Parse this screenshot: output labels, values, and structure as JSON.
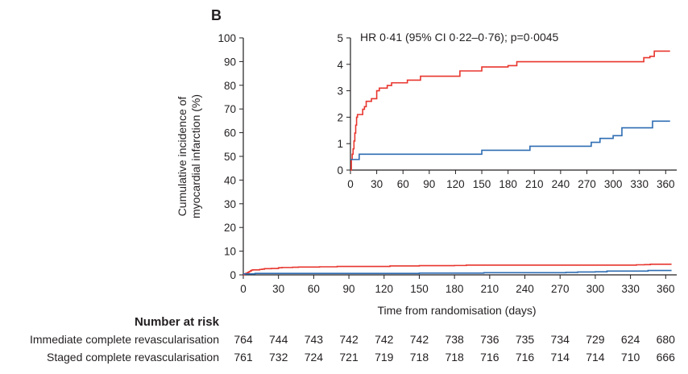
{
  "panel_label": "B",
  "chart_data": [
    {
      "type": "line",
      "role": "main",
      "ylabel_line1": "Cumulative incidence of",
      "ylabel_line2": "myocardial infarction (%)",
      "xlabel": "Time from randomisation (days)",
      "xlim": [
        0,
        365
      ],
      "ylim": [
        0,
        100
      ],
      "x_ticks": [
        0,
        30,
        60,
        90,
        120,
        150,
        180,
        210,
        240,
        270,
        300,
        330,
        360
      ],
      "y_ticks": [
        0,
        10,
        20,
        30,
        40,
        50,
        60,
        70,
        80,
        90,
        100
      ],
      "series": [
        {
          "color": "#e8362e",
          "x": [
            0,
            1,
            2,
            3,
            4,
            5,
            6,
            7,
            8,
            10,
            14,
            16,
            18,
            20,
            22,
            24,
            30,
            33,
            38,
            42,
            47,
            65,
            80,
            125,
            150,
            180,
            190,
            330,
            335,
            342,
            347,
            365
          ],
          "y": [
            0,
            0.4,
            0.6,
            0.8,
            1.1,
            1.4,
            1.7,
            2.0,
            2.1,
            2.1,
            2.3,
            2.4,
            2.6,
            2.6,
            2.6,
            2.7,
            3.0,
            3.1,
            3.1,
            3.2,
            3.3,
            3.4,
            3.55,
            3.75,
            3.9,
            3.95,
            4.1,
            4.1,
            4.25,
            4.3,
            4.5,
            4.5
          ]
        },
        {
          "color": "#2e6db3",
          "x": [
            0,
            5,
            10,
            150,
            205,
            270,
            275,
            285,
            300,
            310,
            345,
            365
          ],
          "y": [
            0.4,
            0.4,
            0.6,
            0.75,
            0.9,
            0.9,
            1.05,
            1.2,
            1.3,
            1.6,
            1.85,
            1.85
          ]
        }
      ]
    },
    {
      "type": "line",
      "role": "inset",
      "annotation": "HR 0·41 (95% CI 0·22–0·76); p=0·0045",
      "xlim": [
        0,
        365
      ],
      "ylim": [
        0,
        5
      ],
      "x_ticks": [
        0,
        30,
        60,
        90,
        120,
        150,
        180,
        210,
        240,
        270,
        300,
        330,
        360
      ],
      "y_ticks": [
        0,
        1,
        2,
        3,
        4,
        5
      ],
      "series_from": "main"
    }
  ],
  "risk_table": {
    "title": "Number at risk",
    "rows": [
      {
        "label": "Immediate complete revascularisation",
        "values": [
          "764",
          "744",
          "743",
          "742",
          "742",
          "742",
          "738",
          "736",
          "735",
          "734",
          "729",
          "624",
          "680"
        ]
      },
      {
        "label": "Staged complete revascularisation",
        "values": [
          "761",
          "732",
          "724",
          "721",
          "719",
          "718",
          "718",
          "716",
          "716",
          "714",
          "714",
          "710",
          "666"
        ]
      }
    ]
  }
}
